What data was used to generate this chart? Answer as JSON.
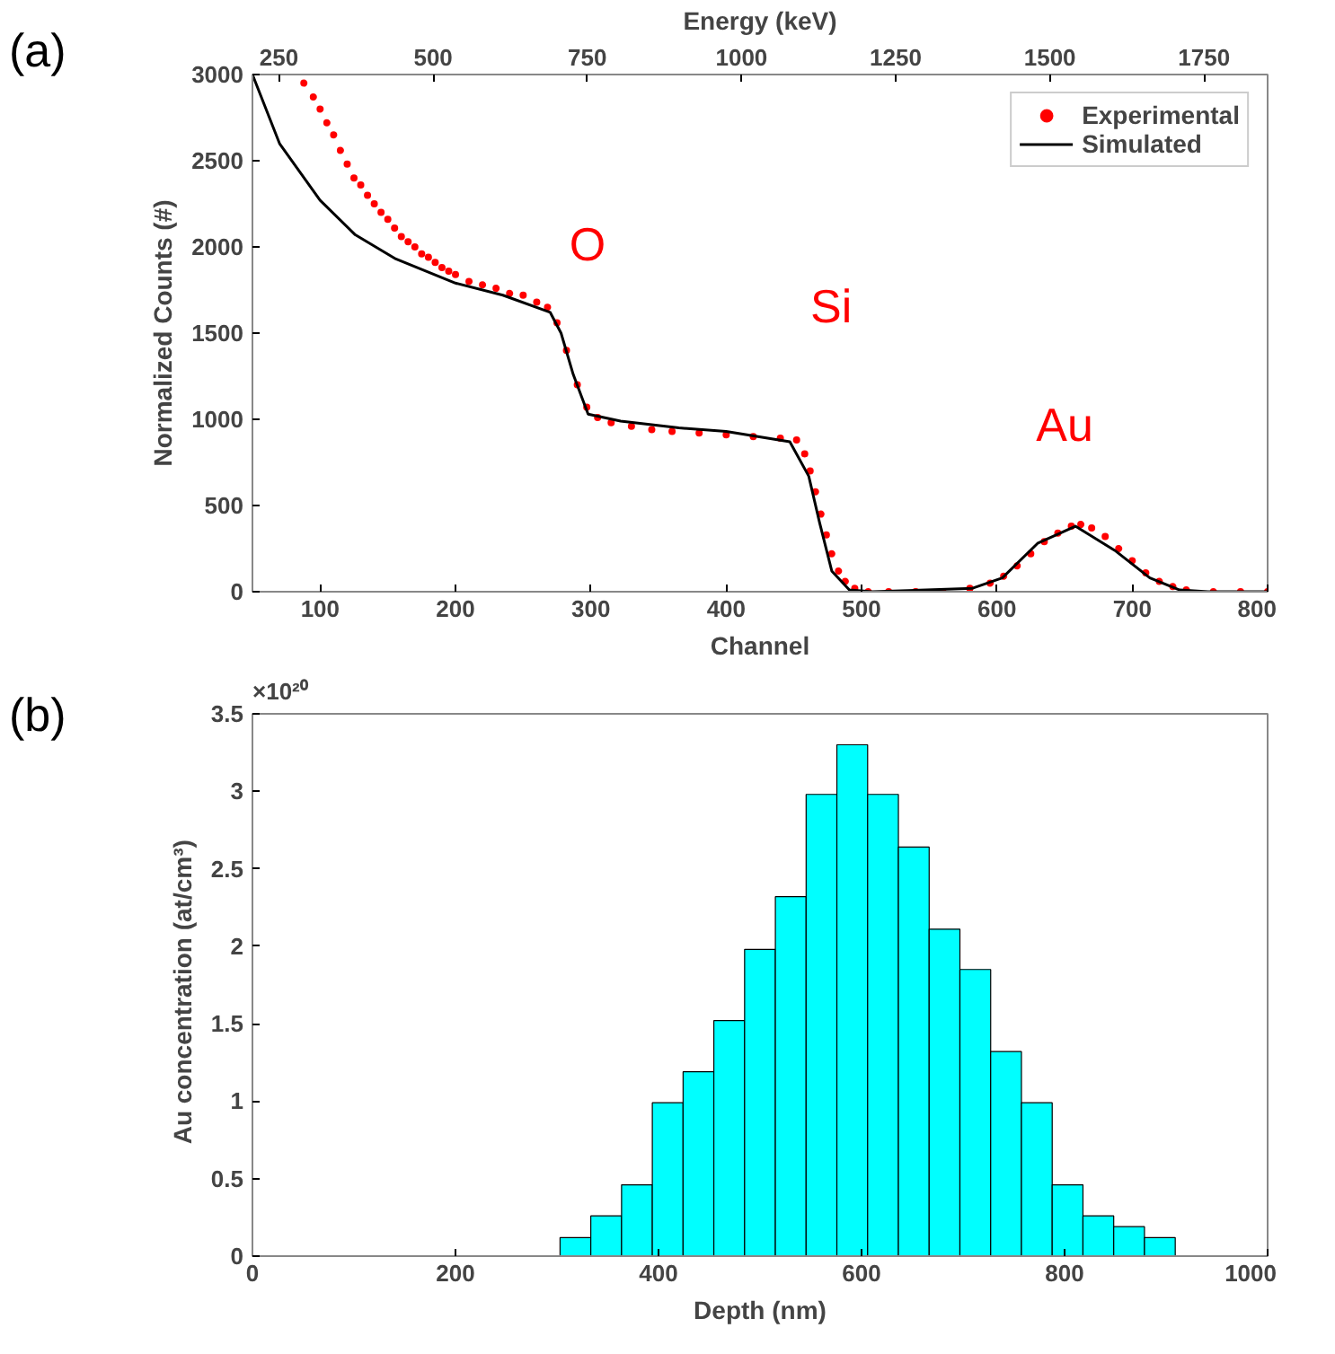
{
  "chart_data": [
    {
      "type": "line",
      "xlabel": "Channel",
      "ylabel": "Normalized Counts (#)",
      "x2label": "Energy (keV)",
      "xlim": [
        50,
        800
      ],
      "ylim": [
        0,
        3000
      ],
      "xticks": [
        100,
        200,
        300,
        400,
        500,
        600,
        700,
        800
      ],
      "yticks": [
        0,
        500,
        1000,
        1500,
        2000,
        2500,
        3000
      ],
      "x2lim": [
        207,
        1853
      ],
      "x2ticks": [
        250,
        500,
        750,
        1000,
        1250,
        1500,
        1750
      ],
      "legend": "top right",
      "grid": false,
      "annotations": [
        "(a)",
        "O",
        "Si",
        "Au"
      ],
      "series": [
        {
          "name": "Experimental",
          "type": "scatter",
          "marker": "circle",
          "color": "#ff0000",
          "x": [
            88,
            95,
            100,
            105,
            110,
            115,
            120,
            125,
            130,
            135,
            140,
            145,
            150,
            155,
            160,
            165,
            170,
            175,
            180,
            185,
            190,
            195,
            200,
            210,
            220,
            230,
            240,
            250,
            260,
            268,
            275,
            282,
            290,
            297,
            305,
            315,
            330,
            345,
            360,
            380,
            400,
            420,
            440,
            452,
            458,
            462,
            466,
            470,
            474,
            478,
            483,
            488,
            495,
            505,
            520,
            540,
            560,
            580,
            595,
            605,
            615,
            625,
            635,
            645,
            655,
            662,
            670,
            680,
            690,
            700,
            710,
            720,
            730,
            740,
            760,
            780,
            800
          ],
          "values": [
            2950,
            2870,
            2800,
            2720,
            2650,
            2560,
            2480,
            2400,
            2360,
            2300,
            2250,
            2200,
            2160,
            2110,
            2060,
            2030,
            2000,
            1960,
            1940,
            1910,
            1880,
            1860,
            1840,
            1800,
            1780,
            1760,
            1730,
            1720,
            1680,
            1650,
            1560,
            1400,
            1200,
            1070,
            1010,
            980,
            960,
            940,
            930,
            920,
            910,
            900,
            890,
            880,
            800,
            700,
            580,
            450,
            330,
            220,
            120,
            60,
            20,
            0,
            0,
            0,
            0,
            20,
            50,
            90,
            150,
            220,
            290,
            340,
            380,
            390,
            370,
            320,
            250,
            180,
            110,
            60,
            30,
            10,
            0,
            0,
            0
          ]
        },
        {
          "name": "Simulated",
          "type": "line",
          "line_style": "solid",
          "color": "#000000",
          "x": [
            50,
            70,
            100,
            126,
            156,
            200,
            235,
            270,
            278,
            287,
            298,
            322,
            365,
            400,
            447,
            461,
            469,
            478,
            491,
            508,
            582,
            604,
            630,
            658,
            687,
            713,
            735,
            756,
            800
          ],
          "values": [
            3000,
            2600,
            2270,
            2070,
            1930,
            1790,
            1720,
            1620,
            1500,
            1260,
            1030,
            990,
            950,
            930,
            870,
            670,
            400,
            120,
            10,
            0,
            20,
            80,
            280,
            380,
            240,
            80,
            10,
            0,
            0
          ]
        }
      ]
    },
    {
      "type": "histogram",
      "xlabel": "Depth (nm)",
      "ylabel": "Au  concentration  (at/cm³)",
      "xlim": [
        0,
        1000
      ],
      "ylim": [
        0,
        3.5
      ],
      "xticks": [
        0,
        200,
        400,
        600,
        800,
        1000
      ],
      "yticks": [
        0,
        0.5,
        1,
        1.5,
        2,
        2.5,
        3,
        3.5
      ],
      "color": "#00ffff",
      "grid": false,
      "annotations": [
        "(b)",
        "×10²⁰"
      ],
      "bins": [
        303,
        333.3,
        363.6,
        393.9,
        424.2,
        454.5,
        484.8,
        515.1,
        545.4,
        575.7,
        606,
        636.3,
        666.6,
        696.9,
        727.2,
        757.5,
        787.8,
        818.1,
        848.4,
        878.7,
        909
      ],
      "values": [
        0.12,
        0.26,
        0.46,
        0.99,
        1.19,
        1.52,
        1.98,
        2.32,
        2.98,
        3.3,
        2.98,
        2.64,
        2.11,
        1.85,
        1.32,
        0.99,
        0.46,
        0.26,
        0.19,
        0.12
      ]
    }
  ]
}
